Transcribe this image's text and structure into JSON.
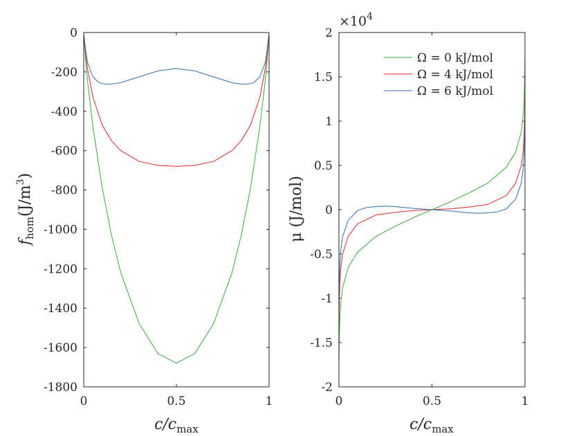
{
  "chart_data": [
    {
      "type": "line",
      "panel": "left",
      "title": "",
      "xlabel": {
        "main": "c/c",
        "sub": "max"
      },
      "ylabel": {
        "main": "f",
        "sub": "hom",
        "rest": "(J/m",
        "sup": "3",
        "close": ")"
      },
      "xlim": [
        0,
        1
      ],
      "ylim": [
        -1800,
        0
      ],
      "xticks": [
        0,
        0.5,
        1
      ],
      "xtick_labels": [
        "0",
        "0.5",
        "1"
      ],
      "yticks": [
        0,
        -200,
        -400,
        -600,
        -800,
        -1000,
        -1200,
        -1400,
        -1600,
        -1800
      ],
      "ytick_labels": [
        "0",
        "-200",
        "-400",
        "-600",
        "-800",
        "-1000",
        "-1200",
        "-1400",
        "-1600",
        "-1800"
      ],
      "grid": false,
      "series": [
        {
          "name": "Ω = 0 kJ/mol",
          "color": "#3aaa35",
          "x": [
            0.001,
            0.01,
            0.02,
            0.05,
            0.1,
            0.15,
            0.2,
            0.3,
            0.4,
            0.5,
            0.6,
            0.7,
            0.8,
            0.85,
            0.9,
            0.95,
            0.98,
            0.99,
            0.999
          ],
          "y": [
            -20,
            -135,
            -240,
            -480,
            -790,
            -1030,
            -1220,
            -1480,
            -1630,
            -1680,
            -1630,
            -1480,
            -1220,
            -1030,
            -790,
            -480,
            -240,
            -135,
            -20
          ]
        },
        {
          "name": "Ω = 4 kJ/mol",
          "color": "#e0262c",
          "x": [
            0.001,
            0.01,
            0.02,
            0.05,
            0.1,
            0.15,
            0.2,
            0.3,
            0.4,
            0.5,
            0.6,
            0.7,
            0.8,
            0.85,
            0.9,
            0.95,
            0.98,
            0.99,
            0.999
          ],
          "y": [
            -15,
            -110,
            -180,
            -330,
            -470,
            -550,
            -600,
            -655,
            -675,
            -680,
            -675,
            -655,
            -600,
            -550,
            -470,
            -330,
            -180,
            -110,
            -15
          ]
        },
        {
          "name": "Ω = 6 kJ/mol",
          "color": "#2f6db5",
          "x": [
            0.001,
            0.01,
            0.02,
            0.05,
            0.08,
            0.1,
            0.13,
            0.15,
            0.2,
            0.3,
            0.4,
            0.5,
            0.6,
            0.7,
            0.8,
            0.85,
            0.87,
            0.9,
            0.92,
            0.95,
            0.98,
            0.99,
            0.999
          ],
          "y": [
            -10,
            -85,
            -150,
            -225,
            -253,
            -259,
            -263,
            -262,
            -255,
            -225,
            -195,
            -183,
            -195,
            -225,
            -255,
            -262,
            -263,
            -259,
            -253,
            -225,
            -150,
            -85,
            -10
          ]
        }
      ]
    },
    {
      "type": "line",
      "panel": "right",
      "title": "",
      "xlabel": {
        "main": "c/c",
        "sub": "max"
      },
      "ylabel": {
        "main": "μ (J/mol)"
      },
      "exponent_label": {
        "base": "×10",
        "sup": "4"
      },
      "xlim": [
        0,
        1
      ],
      "ylim": [
        -2,
        2
      ],
      "xticks": [
        0,
        0.5,
        1
      ],
      "xtick_labels": [
        "0",
        "0.5",
        "1"
      ],
      "yticks": [
        2,
        1.5,
        1,
        0.5,
        0,
        -0.5,
        -1,
        -1.5,
        -2
      ],
      "ytick_labels": [
        "2",
        "1.5",
        "1",
        "0.5",
        "0",
        "-0.5",
        "-1",
        "-1.5",
        "-2"
      ],
      "grid": false,
      "legend_position": "top-right",
      "series": [
        {
          "name": "Ω = 0 kJ/mol",
          "color": "#3aaa35",
          "x": [
            0.0006,
            0.002,
            0.005,
            0.01,
            0.02,
            0.05,
            0.1,
            0.2,
            0.3,
            0.4,
            0.5,
            0.6,
            0.7,
            0.8,
            0.9,
            0.95,
            0.98,
            0.99,
            0.995,
            0.998,
            0.9994
          ],
          "y": [
            -1.7,
            -1.44,
            -1.22,
            -1.05,
            -0.88,
            -0.65,
            -0.48,
            -0.3,
            -0.19,
            -0.09,
            0.0,
            0.09,
            0.19,
            0.3,
            0.48,
            0.65,
            0.88,
            1.05,
            1.22,
            1.44,
            1.7
          ]
        },
        {
          "name": "Ω = 4 kJ/mol",
          "color": "#e0262c",
          "x": [
            0.0006,
            0.002,
            0.005,
            0.01,
            0.02,
            0.05,
            0.1,
            0.2,
            0.3,
            0.4,
            0.5,
            0.6,
            0.7,
            0.8,
            0.9,
            0.95,
            0.98,
            0.99,
            0.995,
            0.998,
            0.9994
          ],
          "y": [
            -1.3,
            -1.04,
            -0.82,
            -0.66,
            -0.5,
            -0.3,
            -0.16,
            -0.06,
            -0.03,
            -0.01,
            0.0,
            0.01,
            0.03,
            0.06,
            0.16,
            0.3,
            0.5,
            0.66,
            0.82,
            1.04,
            1.3
          ]
        },
        {
          "name": "Ω = 6 kJ/mol",
          "color": "#2f6db5",
          "x": [
            0.0006,
            0.002,
            0.005,
            0.01,
            0.02,
            0.05,
            0.1,
            0.15,
            0.2,
            0.25,
            0.3,
            0.35,
            0.4,
            0.5,
            0.6,
            0.65,
            0.7,
            0.75,
            0.8,
            0.85,
            0.9,
            0.95,
            0.98,
            0.99,
            0.995,
            0.998,
            0.9994
          ],
          "y": [
            -1.1,
            -0.84,
            -0.62,
            -0.46,
            -0.3,
            -0.12,
            -0.01,
            0.025,
            0.035,
            0.04,
            0.035,
            0.025,
            0.015,
            0.0,
            -0.015,
            -0.025,
            -0.035,
            -0.04,
            -0.035,
            -0.025,
            0.01,
            0.12,
            0.3,
            0.46,
            0.62,
            0.84,
            1.1
          ]
        }
      ]
    }
  ]
}
